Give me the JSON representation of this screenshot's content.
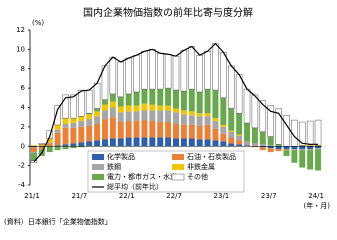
{
  "chart_data": {
    "type": "bar",
    "stacked": true,
    "title": "国内企業物価指数の前年比寄与度分解",
    "y_unit": "(%)",
    "x_label": "(年・月)",
    "source": "(資料）日本銀行「企業物価指数」",
    "categories": [
      "21/1",
      null,
      null,
      null,
      null,
      null,
      "21/7",
      null,
      null,
      null,
      null,
      null,
      "22/1",
      null,
      null,
      null,
      null,
      null,
      "22/7",
      null,
      null,
      null,
      null,
      null,
      "23/1",
      null,
      null,
      null,
      null,
      null,
      "23/7",
      null,
      null,
      null,
      null,
      null,
      "24/1"
    ],
    "ylim": [
      -4,
      12
    ],
    "yticks": [
      -4,
      -2,
      0,
      2,
      4,
      6,
      8,
      10,
      12
    ],
    "series": [
      {
        "name": "化学製品",
        "color": "#2e5fa8",
        "values": [
          -0.1,
          -0.1,
          0,
          0.1,
          0.2,
          0.3,
          0.4,
          0.5,
          0.6,
          0.7,
          0.8,
          0.8,
          0.9,
          0.9,
          0.9,
          0.9,
          0.9,
          0.9,
          0.8,
          0.8,
          0.8,
          0.7,
          0.7,
          0.6,
          0.5,
          0.3,
          0.2,
          0.1,
          0,
          -0.1,
          -0.2,
          -0.3,
          -0.3,
          -0.3,
          -0.3,
          -0.3,
          -0.2
        ]
      },
      {
        "name": "石油・石炭製品",
        "color": "#e8823a",
        "values": [
          -0.5,
          -0.2,
          0.3,
          1.3,
          1.7,
          1.6,
          1.6,
          1.6,
          1.7,
          2.1,
          2.2,
          1.7,
          1.7,
          1.7,
          1.8,
          1.7,
          1.6,
          1.6,
          1.5,
          1.4,
          1.4,
          1.4,
          1.5,
          1.2,
          0.8,
          0.6,
          0.4,
          0,
          -0.1,
          -0.3,
          -0.4,
          -0.2,
          -0.1,
          0,
          0,
          0.1,
          0
        ]
      },
      {
        "name": "鉄鋼",
        "color": "#a6a6a6",
        "values": [
          -0.1,
          0,
          0.1,
          0.3,
          0.4,
          0.5,
          0.6,
          0.7,
          0.8,
          0.9,
          1.0,
          1.0,
          1.0,
          1.0,
          1.0,
          1.1,
          1.2,
          1.2,
          1.2,
          1.1,
          1.0,
          1.0,
          0.9,
          0.8,
          0.7,
          0.6,
          0.5,
          0.4,
          0.3,
          0.2,
          0.1,
          0,
          0,
          -0.1,
          -0.1,
          -0.1,
          -0.1
        ]
      },
      {
        "name": "非鉄金属",
        "color": "#f2c500",
        "values": [
          0.1,
          0.2,
          0.4,
          0.5,
          0.6,
          0.5,
          0.5,
          0.5,
          0.5,
          0.6,
          0.6,
          0.6,
          0.6,
          0.6,
          0.7,
          0.6,
          0.5,
          0.5,
          0.4,
          0.4,
          0.4,
          0.3,
          0.3,
          0.3,
          0.2,
          0.1,
          0.1,
          0,
          0,
          0,
          0,
          0,
          0,
          0,
          0.1,
          0.1,
          0.1
        ]
      },
      {
        "name": "電力・都市ガス・水道",
        "color": "#6aa84f",
        "values": [
          -0.8,
          -0.7,
          -0.6,
          -0.4,
          -0.3,
          -0.2,
          -0.1,
          0.1,
          0.3,
          0.5,
          0.8,
          1.0,
          1.2,
          1.4,
          1.5,
          1.6,
          1.7,
          1.8,
          1.9,
          2.0,
          2.3,
          2.2,
          2.5,
          2.9,
          2.8,
          2.3,
          2.2,
          1.9,
          1.6,
          1.3,
          0.9,
          0.2,
          -0.6,
          -1.3,
          -1.8,
          -2.0,
          -2.2
        ]
      },
      {
        "name": "その他",
        "color": "#ffffff",
        "values": [
          -0.2,
          0.1,
          0.8,
          2.0,
          2.4,
          2.4,
          2.7,
          2.4,
          2.6,
          3.5,
          3.8,
          3.6,
          3.7,
          3.8,
          3.9,
          4.1,
          3.7,
          3.5,
          3.5,
          4.2,
          4.4,
          3.8,
          3.9,
          4.8,
          4.7,
          4.4,
          4.0,
          3.5,
          3.4,
          3.2,
          3.2,
          3.7,
          3.2,
          2.7,
          2.4,
          2.4,
          2.6
        ]
      },
      {
        "name": "総平均（前年比）",
        "type": "line",
        "color": "#000000",
        "values": [
          -1.6,
          -0.7,
          1.0,
          3.8,
          5.0,
          5.1,
          5.7,
          5.8,
          6.5,
          8.3,
          9.2,
          8.7,
          9.1,
          9.4,
          9.8,
          10.0,
          9.6,
          9.5,
          9.3,
          9.9,
          10.3,
          9.4,
          9.8,
          10.6,
          9.7,
          8.3,
          7.4,
          5.9,
          5.2,
          4.3,
          3.6,
          3.4,
          2.2,
          1.0,
          0.3,
          0.2,
          0.2
        ]
      }
    ]
  }
}
